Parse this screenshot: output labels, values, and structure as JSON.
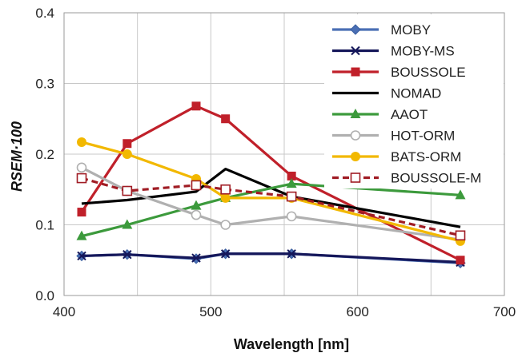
{
  "chart_data": {
    "type": "line",
    "xlabel": "Wavelength [nm]",
    "ylabel": "RSEM·100",
    "xlim": [
      400,
      700
    ],
    "ylim": [
      0,
      0.4
    ],
    "x_ticks": [
      "400",
      "500",
      "600",
      "700"
    ],
    "y_ticks": [
      "0.0",
      "0.1",
      "0.2",
      "0.3",
      "0.4"
    ],
    "grid": true,
    "legend_position": "top-right",
    "series": [
      {
        "name": "MOBY",
        "color": "#4a6fb5",
        "marker": "diamond",
        "dashed": false,
        "x": [
          412,
          443,
          490,
          510,
          555,
          670
        ],
        "y": [
          0.056,
          0.058,
          0.052,
          0.059,
          0.059,
          0.046
        ]
      },
      {
        "name": "MOBY-MS",
        "color": "#15175a",
        "marker": "cross",
        "dashed": false,
        "x": [
          412,
          443,
          490,
          510,
          555,
          670
        ],
        "y": [
          0.056,
          0.058,
          0.053,
          0.059,
          0.059,
          0.047
        ]
      },
      {
        "name": "BOUSSOLE",
        "color": "#c0202a",
        "marker": "square",
        "dashed": false,
        "x": [
          412,
          443,
          490,
          510,
          555,
          670
        ],
        "y": [
          0.118,
          0.215,
          0.268,
          0.25,
          0.169,
          0.05
        ]
      },
      {
        "name": "NOMAD",
        "color": "#000000",
        "marker": "none",
        "dashed": false,
        "x": [
          412,
          443,
          490,
          510,
          555,
          670
        ],
        "y": [
          0.13,
          0.135,
          0.147,
          0.179,
          0.14,
          0.097
        ]
      },
      {
        "name": "AAOT",
        "color": "#3c9a3c",
        "marker": "triangle",
        "dashed": false,
        "x": [
          412,
          443,
          490,
          510,
          555,
          670
        ],
        "y": [
          0.084,
          0.1,
          0.127,
          0.138,
          0.158,
          0.142
        ]
      },
      {
        "name": "HOT-ORM",
        "color": "#b0b0b0",
        "marker": "open-circle",
        "dashed": false,
        "x": [
          412,
          443,
          490,
          510,
          555,
          670
        ],
        "y": [
          0.181,
          0.148,
          0.114,
          0.1,
          0.112,
          0.079
        ]
      },
      {
        "name": "BATS-ORM",
        "color": "#f2b800",
        "marker": "circle",
        "dashed": false,
        "x": [
          412,
          443,
          490,
          510,
          555,
          670
        ],
        "y": [
          0.217,
          0.2,
          0.165,
          0.138,
          0.138,
          0.077
        ]
      },
      {
        "name": "BOUSSOLE-M",
        "color": "#a01c24",
        "marker": "open-square",
        "dashed": true,
        "x": [
          412,
          443,
          490,
          510,
          555,
          670
        ],
        "y": [
          0.166,
          0.148,
          0.156,
          0.15,
          0.14,
          0.085
        ]
      }
    ]
  }
}
